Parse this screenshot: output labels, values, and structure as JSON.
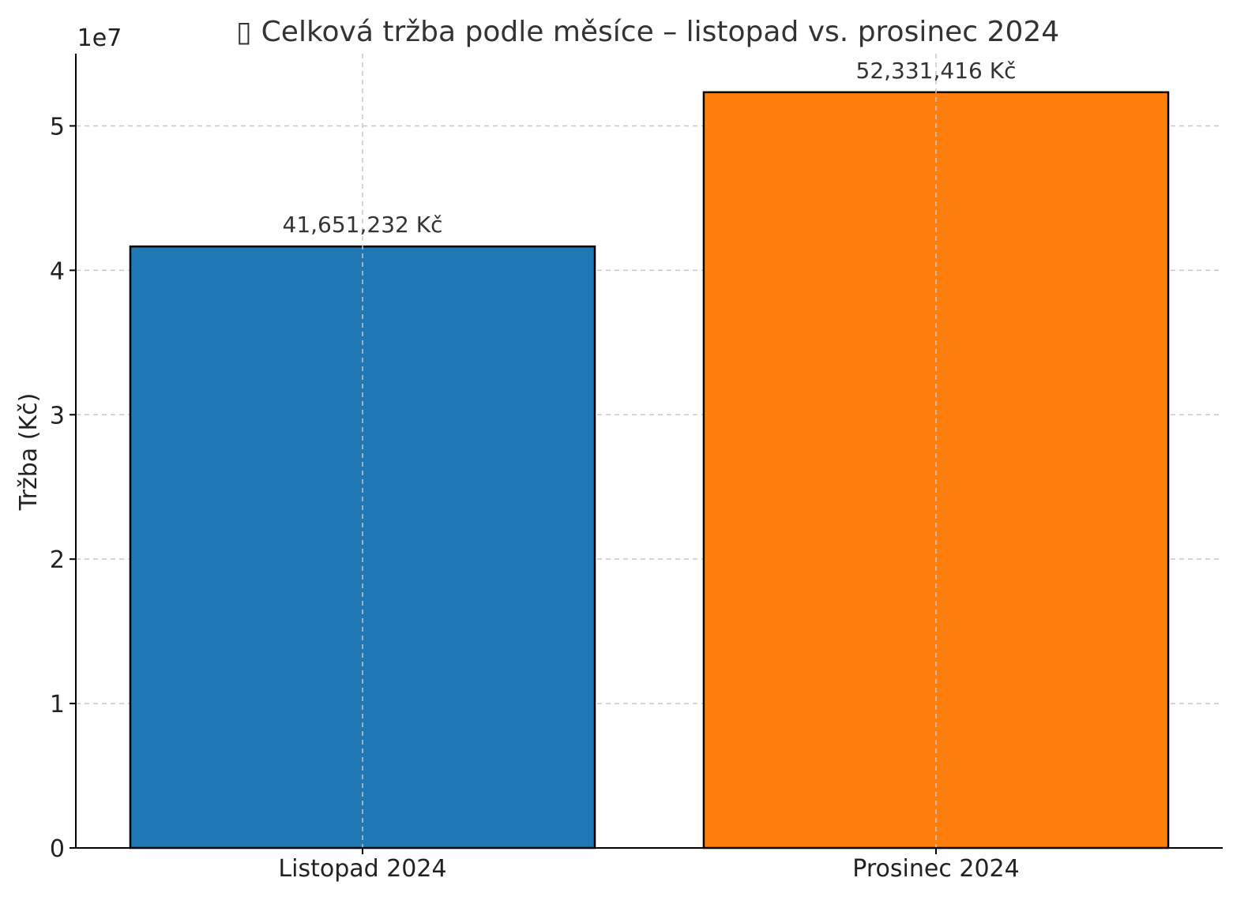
{
  "chart_data": {
    "type": "bar",
    "title": "Celková tržba podle měsíce – listopad vs. prosinec 2024",
    "title_icon": "tofu-glyph",
    "xlabel": "",
    "ylabel": "Tržba (Kč)",
    "y_offset_label": "1e7",
    "categories": [
      "Listopad 2024",
      "Prosinec 2024"
    ],
    "values": [
      41651232,
      52331416
    ],
    "value_labels": [
      "41,651,232 Kč",
      "52,331,416 Kč"
    ],
    "colors": [
      "#1f77b4",
      "#ff7f0e"
    ],
    "ylim": [
      0,
      55000000
    ],
    "yticks": [
      0,
      10000000,
      20000000,
      30000000,
      40000000,
      50000000
    ],
    "ytick_labels": [
      "0",
      "1",
      "2",
      "3",
      "4",
      "5"
    ],
    "grid": true,
    "legend": "none"
  }
}
